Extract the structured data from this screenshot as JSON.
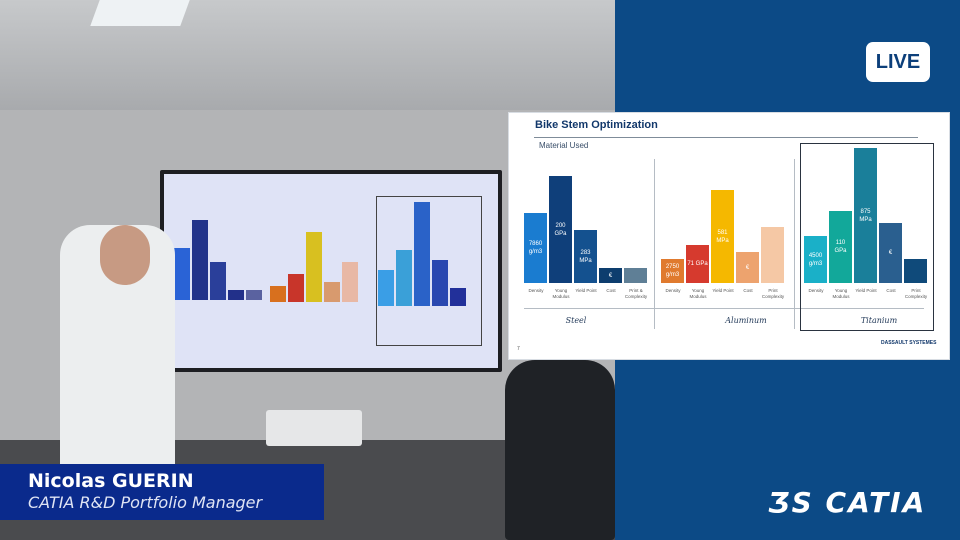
{
  "live_badge": "LIVE",
  "speaker": {
    "name": "Nicolas GUERIN",
    "title": "CATIA R&D Portfolio Manager"
  },
  "brand": {
    "logo_text": "CATIA",
    "slide_logo": "DASSAULT SYSTEMES",
    "panel_color": "#0c4a86",
    "banner_color": "#0a2a8c"
  },
  "slide": {
    "title": "Bike Stem Optimization",
    "subtitle": "Material Used",
    "page": "7",
    "groups": [
      {
        "name": "Steel",
        "bars": [
          {
            "label": "Density",
            "value": "7860 g/m3",
            "color": "#1a7cd0"
          },
          {
            "label": "Young Modulus",
            "value": "200 GPa",
            "color": "#0f3f7a"
          },
          {
            "label": "Yield Point",
            "value": "283 MPa",
            "color": "#14518f"
          },
          {
            "label": "Cost",
            "value": "€",
            "color": "#0d3d6e"
          },
          {
            "label": "Print & Complexity",
            "value": "",
            "color": "#5f7f96"
          }
        ]
      },
      {
        "name": "Aluminum",
        "bars": [
          {
            "label": "Density",
            "value": "2750 g/m3",
            "color": "#e07a2e"
          },
          {
            "label": "Young Modulus",
            "value": "71 GPa",
            "color": "#d63a2e"
          },
          {
            "label": "Yield Point",
            "value": "581 MPa",
            "color": "#f5b800"
          },
          {
            "label": "Cost",
            "value": "€",
            "color": "#eda36e"
          },
          {
            "label": "Print Complexity",
            "value": "",
            "color": "#f5c8a5"
          }
        ]
      },
      {
        "name": "Titanium",
        "bars": [
          {
            "label": "Density",
            "value": "4500 g/m3",
            "color": "#1ab0c8"
          },
          {
            "label": "Young Modulus",
            "value": "110 GPa",
            "color": "#12a89a"
          },
          {
            "label": "Yield Point",
            "value": "875 MPa",
            "color": "#1a7f9a"
          },
          {
            "label": "Cost",
            "value": "€",
            "color": "#2a5f8f"
          },
          {
            "label": "Print Complexity",
            "value": "",
            "color": "#0f4a7a"
          }
        ]
      }
    ]
  }
}
